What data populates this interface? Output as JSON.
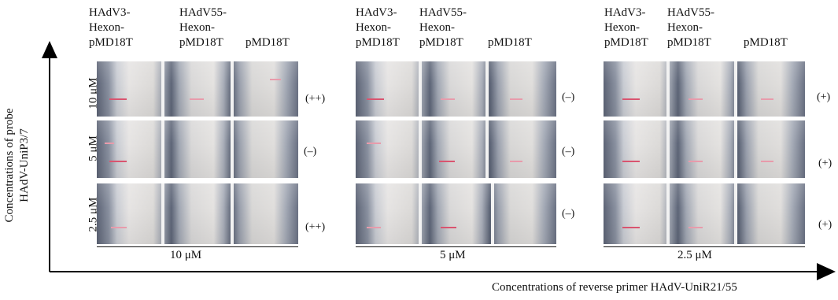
{
  "column_labels": [
    "HAdV3-\nHexon-\npMD18T",
    "HAdV55-\nHexon-\npMD18T",
    "pMD18T"
  ],
  "row_labels": [
    "10 μM",
    "5 μM",
    "2.5 μM"
  ],
  "x_group_labels": [
    "10 μM",
    "5 μM",
    "2.5 μM"
  ],
  "y_axis_title": [
    "Concentrations of probe",
    "HAdV-UniP3/7"
  ],
  "x_axis_title": "Concentrations of reverse primer HAdV-UniR21/55",
  "results": [
    [
      "(++)",
      "(–)",
      "(+)"
    ],
    [
      "(–)",
      "(–)",
      "(+)"
    ],
    [
      "(++)",
      "(–)",
      "(+)"
    ]
  ],
  "colors": {
    "test_line": "#d9546f",
    "axis": "#000000"
  }
}
